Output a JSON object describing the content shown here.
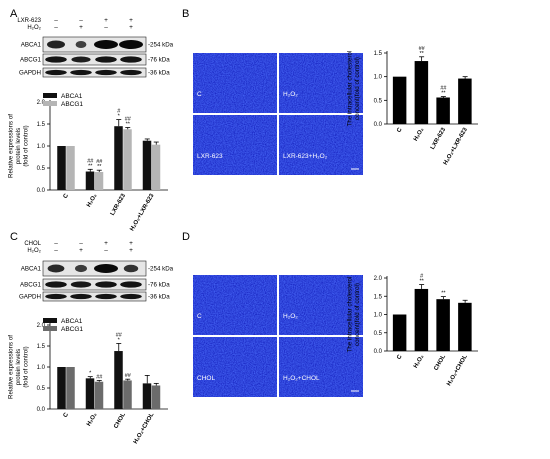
{
  "panels": {
    "a": {
      "letter": "A",
      "blot": {
        "treatment_rows": [
          {
            "label": "LXR-623",
            "signs": [
              "–",
              "–",
              "+",
              "+"
            ]
          },
          {
            "label": "H₂O₂",
            "signs": [
              "–",
              "+",
              "–",
              "+"
            ]
          }
        ],
        "band_labels": [
          "ABCA1",
          "ABCG1",
          "GAPDH"
        ],
        "kda_labels": [
          "-254 kDa",
          "-76 kDa",
          "-36 kDa"
        ]
      },
      "chart": {
        "ylabel": "Relative expressions of protein levels (fold of control)",
        "ylabel_lines": [
          "Relative expressions of",
          "protein levels",
          "(fold of control)"
        ],
        "legend": [
          "ABCA1",
          "ABCG1"
        ],
        "yticks": [
          "0.0",
          "0.5",
          "1.0",
          "1.5",
          "2.0"
        ],
        "categories": [
          "C",
          "H₂O₂",
          "LXR-623",
          "H₂O₂+LXR-623"
        ],
        "annotations": [
          {
            "ci": 1,
            "si": 0,
            "lines": [
              "##",
              "**"
            ]
          },
          {
            "ci": 1,
            "si": 1,
            "lines": [
              "##",
              "**"
            ]
          },
          {
            "ci": 2,
            "si": 0,
            "lines": [
              "#",
              "*"
            ]
          },
          {
            "ci": 2,
            "si": 1,
            "lines": [
              "##",
              "**"
            ]
          }
        ]
      }
    },
    "b": {
      "letter": "B",
      "images": [
        "C",
        "H₂O₂",
        "LXR-623",
        "LXR-623+H₂O₂"
      ],
      "chart": {
        "ylabel": "The intracellular cholesterol concent(fold of control)",
        "ylabel_lines": [
          "The intracellular cholesterol",
          "concent(fold of control)"
        ],
        "yticks": [
          "0.0",
          "0.5",
          "1.0",
          "1.5"
        ],
        "categories": [
          "C",
          "H₂O₂",
          "LXR-623",
          "H₂O₂+LXR-623"
        ],
        "annotations": [
          {
            "ci": 1,
            "si": 0,
            "lines": [
              "##",
              "**"
            ]
          },
          {
            "ci": 2,
            "si": 0,
            "lines": [
              "##",
              "**"
            ]
          }
        ]
      }
    },
    "c": {
      "letter": "C",
      "blot": {
        "treatment_rows": [
          {
            "label": "CHOL",
            "signs": [
              "–",
              "–",
              "+",
              "+"
            ]
          },
          {
            "label": "H₂O₂",
            "signs": [
              "–",
              "+",
              "–",
              "+"
            ]
          }
        ],
        "band_labels": [
          "ABCA1",
          "ABCG1",
          "GAPDH"
        ],
        "kda_labels": [
          "-254 kDa",
          "-76 kDa",
          "-36 kDa"
        ]
      },
      "chart": {
        "ylabel": "Relative expressions of protein levels (fold of control)",
        "ylabel_lines": [
          "Relative expressions of",
          "protein levels",
          "(fold of control)"
        ],
        "legend": [
          "ABCA1",
          "ABCG1"
        ],
        "yticks": [
          "0.0",
          "0.5",
          "1.0",
          "1.5",
          "2.0"
        ],
        "categories": [
          "C",
          "H₂O₂",
          "CHOL",
          "H₂O₂+CHOL"
        ],
        "annotations": [
          {
            "ci": 1,
            "si": 0,
            "lines": [
              "*"
            ]
          },
          {
            "ci": 1,
            "si": 1,
            "lines": [
              "##"
            ]
          },
          {
            "ci": 2,
            "si": 0,
            "lines": [
              "##",
              "*"
            ]
          },
          {
            "ci": 2,
            "si": 1,
            "lines": [
              "##"
            ]
          }
        ]
      }
    },
    "d": {
      "letter": "D",
      "images": [
        "C",
        "H₂O₂",
        "CHOL",
        "H₂O₂+CHOL"
      ],
      "chart": {
        "ylabel": "The intracellular cholesterol concent(fold of control)",
        "ylabel_lines": [
          "The intracellular cholesterol",
          "concent(fold of control)"
        ],
        "yticks": [
          "0.0",
          "0.5",
          "1.0",
          "1.5",
          "2.0"
        ],
        "categories": [
          "C",
          "H₂O₂",
          "CHOL",
          "H₂O₂+CHOL"
        ],
        "annotations": [
          {
            "ci": 1,
            "si": 0,
            "lines": [
              "#",
              "**"
            ]
          },
          {
            "ci": 2,
            "si": 0,
            "lines": [
              "**"
            ]
          }
        ]
      }
    }
  },
  "colors": {
    "abca1": "#111111",
    "abcg1_a": "#b5b5b5",
    "abcg1_c": "#6b6b6b",
    "single_bar": "#000000",
    "fluorescence": "#1d2bc8"
  },
  "chart_data": [
    {
      "panel": "A",
      "type": "bar",
      "categories": [
        "C",
        "H₂O₂",
        "LXR-623",
        "H₂O₂+LXR-623"
      ],
      "series": [
        {
          "name": "ABCA1",
          "values": [
            1.0,
            0.42,
            1.45,
            1.12
          ],
          "errors": [
            0.0,
            0.05,
            0.15,
            0.04
          ],
          "color": "#111111"
        },
        {
          "name": "ABCG1",
          "values": [
            1.0,
            0.41,
            1.38,
            1.03
          ],
          "errors": [
            0.0,
            0.04,
            0.04,
            0.06
          ],
          "color": "#b5b5b5"
        }
      ],
      "ylim": [
        0,
        2.0
      ],
      "legend": "top-left"
    },
    {
      "panel": "B",
      "type": "bar",
      "categories": [
        "C",
        "H₂O₂",
        "LXR-623",
        "H₂O₂+LXR-623"
      ],
      "series": [
        {
          "values": [
            1.0,
            1.33,
            0.56,
            0.96
          ],
          "errors": [
            0.0,
            0.09,
            0.02,
            0.04
          ],
          "color": "#000000"
        }
      ],
      "ylim": [
        0,
        1.5
      ]
    },
    {
      "panel": "C",
      "type": "bar",
      "categories": [
        "C",
        "H₂O₂",
        "CHOL",
        "H₂O₂+CHOL"
      ],
      "series": [
        {
          "name": "ABCA1",
          "values": [
            1.0,
            0.73,
            1.38,
            0.61
          ],
          "errors": [
            0.0,
            0.04,
            0.18,
            0.19
          ],
          "color": "#111111"
        },
        {
          "name": "ABCG1",
          "values": [
            1.0,
            0.65,
            0.68,
            0.56
          ],
          "errors": [
            0.0,
            0.03,
            0.03,
            0.05
          ],
          "color": "#6b6b6b"
        }
      ],
      "ylim": [
        0,
        2.0
      ],
      "legend": "top-left"
    },
    {
      "panel": "D",
      "type": "bar",
      "categories": [
        "C",
        "H₂O₂",
        "CHOL",
        "H₂O₂+CHOL"
      ],
      "series": [
        {
          "values": [
            1.0,
            1.7,
            1.42,
            1.32
          ],
          "errors": [
            0.0,
            0.12,
            0.07,
            0.07
          ],
          "color": "#000000"
        }
      ],
      "ylim": [
        0,
        2.0
      ]
    }
  ]
}
